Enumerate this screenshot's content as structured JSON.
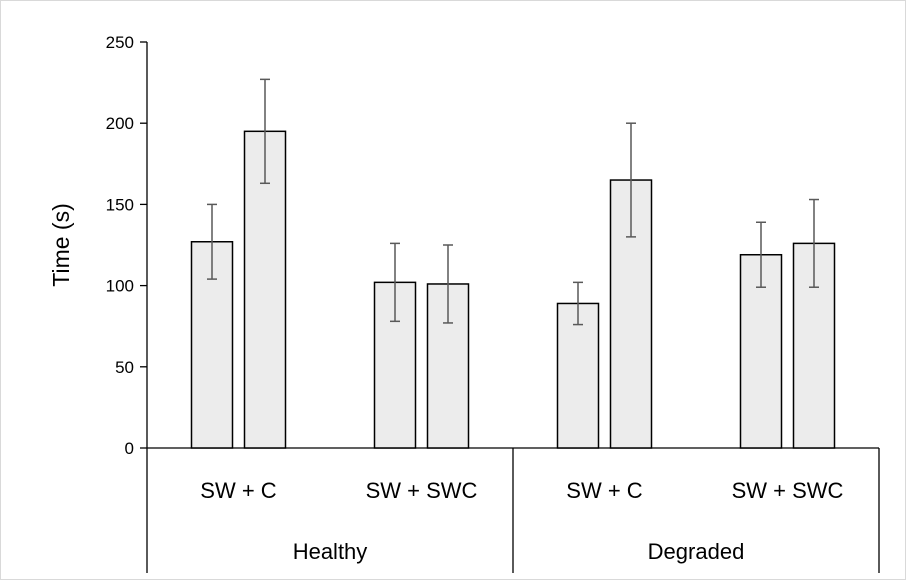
{
  "chart_data": {
    "type": "bar",
    "title": "",
    "xlabel": "",
    "ylabel": "Time (s)",
    "ylim": [
      0,
      250
    ],
    "yticks": [
      0,
      50,
      100,
      150,
      200,
      250
    ],
    "grid": false,
    "legend": "none",
    "bar_fill": "#ececec",
    "bar_stroke": "#000000",
    "errorbar_color": "#595959",
    "groups": [
      {
        "label": "Healthy",
        "subgroups": [
          {
            "label": "SW + C",
            "bars": [
              {
                "value": 127,
                "error": 23
              },
              {
                "value": 195,
                "error": 32
              }
            ]
          },
          {
            "label": "SW + SWC",
            "bars": [
              {
                "value": 102,
                "error": 24
              },
              {
                "value": 101,
                "error": 24
              }
            ]
          }
        ]
      },
      {
        "label": "Degraded",
        "subgroups": [
          {
            "label": "SW + C",
            "bars": [
              {
                "value": 89,
                "error": 13
              },
              {
                "value": 165,
                "error": 35
              }
            ]
          },
          {
            "label": "SW + SWC",
            "bars": [
              {
                "value": 119,
                "error": 20
              },
              {
                "value": 126,
                "error": 27
              }
            ]
          }
        ]
      }
    ]
  }
}
